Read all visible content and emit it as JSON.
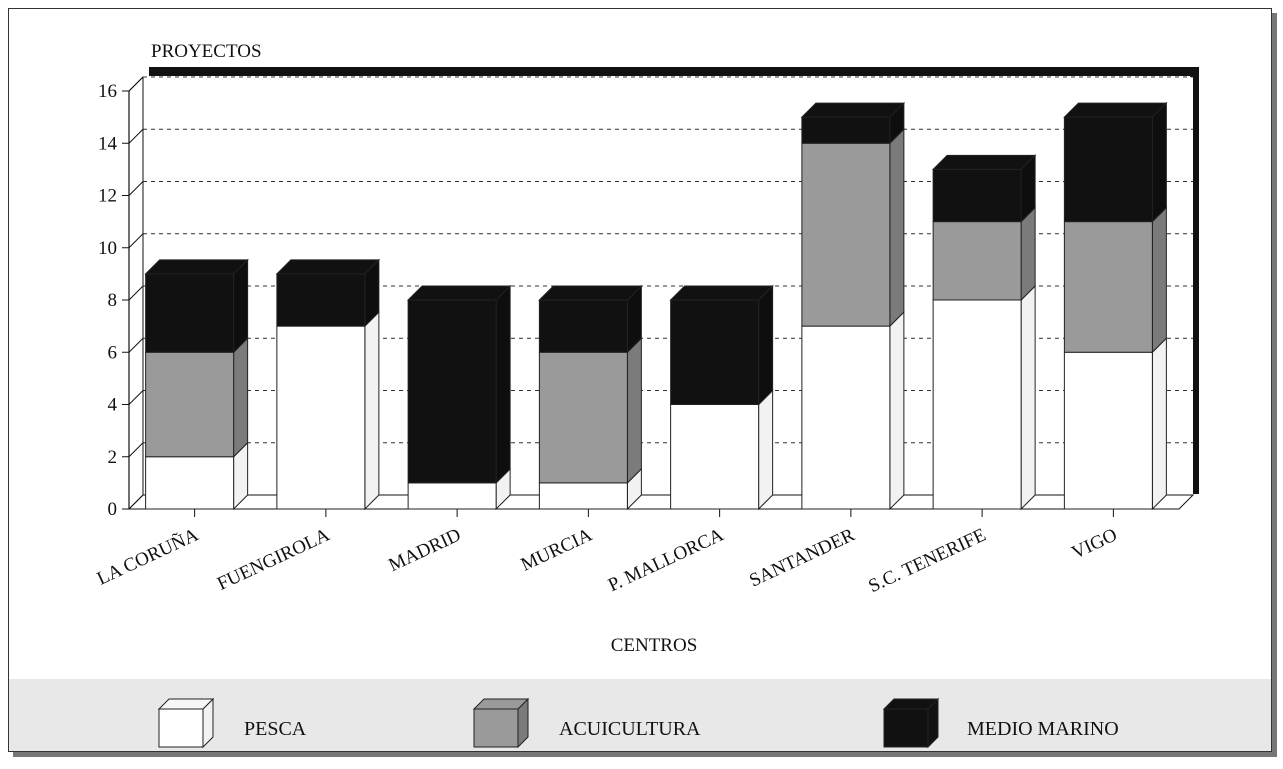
{
  "chart_data": {
    "type": "bar",
    "stacked": true,
    "three_d": true,
    "ylabel": "PROYECTOS",
    "xlabel": "CENTROS",
    "ylim": [
      0,
      16
    ],
    "yticks": [
      "0",
      "2",
      "4",
      "6",
      "8",
      "10",
      "12",
      "14",
      "16"
    ],
    "grid": "dashed horizontal",
    "legend_position": "bottom",
    "categories": [
      "LA CORUÑA",
      "FUENGIROLA",
      "MADRID",
      "MURCIA",
      "P. MALLORCA",
      "SANTANDER",
      "S.C. TENERIFE",
      "VIGO"
    ],
    "series": [
      {
        "name": "PESCA",
        "color": "#ffffff",
        "values": [
          2,
          7,
          1,
          1,
          4,
          7,
          8,
          6
        ]
      },
      {
        "name": "ACUICULTURA",
        "color": "#9a9a9a",
        "values": [
          4,
          0,
          0,
          5,
          0,
          7,
          3,
          5
        ]
      },
      {
        "name": "MEDIO MARINO",
        "color": "#111111",
        "values": [
          3,
          2,
          7,
          2,
          4,
          1,
          2,
          4
        ]
      }
    ]
  }
}
